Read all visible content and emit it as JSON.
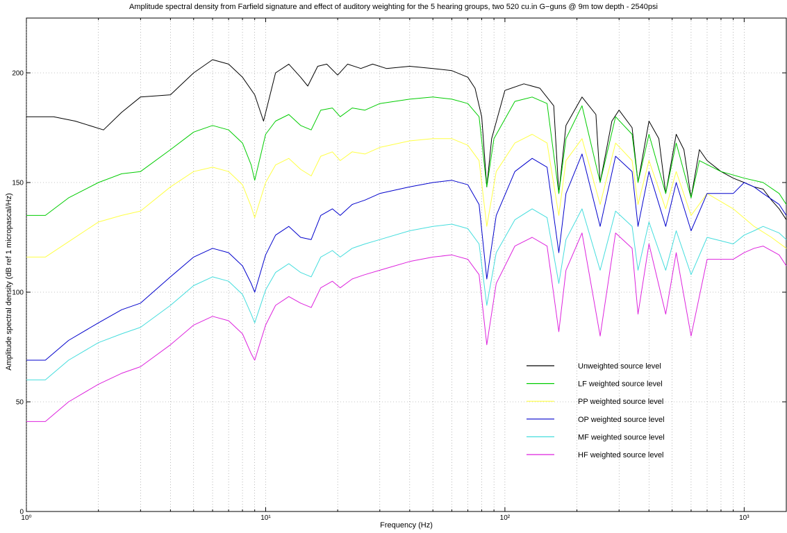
{
  "chart_data": {
    "type": "line",
    "title": "Amplitude spectral density from Farfield signature and effect of auditory weighting for the 5 hearing groups, two 520 cu.in G−guns @ 9m tow depth - 2540psi",
    "xlabel": "Frequency (Hz)",
    "ylabel": "Amplitude spectral density (dB ref 1 micropascal/Hz)",
    "xscale": "log",
    "xlim": [
      1,
      1500
    ],
    "ylim": [
      0,
      225
    ],
    "grid": true,
    "legend_position": "lower-right",
    "x_ticks": [
      {
        "value": 1,
        "label": "10⁰"
      },
      {
        "value": 10,
        "label": "10¹"
      },
      {
        "value": 100,
        "label": "10²"
      },
      {
        "value": 1000,
        "label": "10³"
      }
    ],
    "y_ticks": [
      0,
      50,
      100,
      150,
      200
    ],
    "series": [
      {
        "name": "Unweighted source level",
        "color": "#000000",
        "points": [
          [
            1,
            180
          ],
          [
            1.3,
            180
          ],
          [
            1.6,
            178
          ],
          [
            2.1,
            174
          ],
          [
            2.5,
            182
          ],
          [
            3,
            189
          ],
          [
            4,
            190
          ],
          [
            5,
            200
          ],
          [
            6,
            206
          ],
          [
            7,
            204
          ],
          [
            8,
            198
          ],
          [
            9,
            190
          ],
          [
            9.8,
            178
          ],
          [
            11,
            200
          ],
          [
            12.5,
            204
          ],
          [
            14,
            198
          ],
          [
            15,
            194
          ],
          [
            16.5,
            203
          ],
          [
            18,
            204
          ],
          [
            20,
            199
          ],
          [
            22,
            204
          ],
          [
            25,
            202
          ],
          [
            28,
            204
          ],
          [
            32,
            202
          ],
          [
            40,
            203
          ],
          [
            50,
            202
          ],
          [
            60,
            201
          ],
          [
            70,
            198
          ],
          [
            75,
            193
          ],
          [
            80,
            180
          ],
          [
            84,
            148
          ],
          [
            88,
            170
          ],
          [
            100,
            192
          ],
          [
            120,
            195
          ],
          [
            140,
            193
          ],
          [
            160,
            185
          ],
          [
            168,
            145
          ],
          [
            180,
            176
          ],
          [
            210,
            189
          ],
          [
            240,
            181
          ],
          [
            250,
            150
          ],
          [
            280,
            178
          ],
          [
            300,
            183
          ],
          [
            340,
            175
          ],
          [
            360,
            150
          ],
          [
            400,
            178
          ],
          [
            440,
            170
          ],
          [
            470,
            145
          ],
          [
            520,
            172
          ],
          [
            560,
            165
          ],
          [
            600,
            143
          ],
          [
            650,
            165
          ],
          [
            700,
            160
          ],
          [
            800,
            155
          ],
          [
            900,
            152
          ],
          [
            1000,
            150
          ],
          [
            1100,
            148
          ],
          [
            1200,
            147
          ],
          [
            1300,
            142
          ],
          [
            1400,
            138
          ],
          [
            1500,
            133
          ]
        ]
      },
      {
        "name": "LF weighted source level",
        "color": "#00cc00",
        "points": [
          [
            1,
            135
          ],
          [
            1.2,
            135
          ],
          [
            1.5,
            143
          ],
          [
            2,
            150
          ],
          [
            2.5,
            154
          ],
          [
            3,
            155
          ],
          [
            4,
            165
          ],
          [
            5,
            173
          ],
          [
            6,
            176
          ],
          [
            7,
            174
          ],
          [
            8,
            168
          ],
          [
            8.7,
            158
          ],
          [
            9,
            151
          ],
          [
            10,
            172
          ],
          [
            11,
            178
          ],
          [
            12.5,
            181
          ],
          [
            14,
            176
          ],
          [
            15.5,
            174
          ],
          [
            17,
            183
          ],
          [
            19,
            184
          ],
          [
            20.5,
            180
          ],
          [
            23,
            184
          ],
          [
            26,
            183
          ],
          [
            30,
            186
          ],
          [
            40,
            188
          ],
          [
            50,
            189
          ],
          [
            60,
            188
          ],
          [
            70,
            186
          ],
          [
            78,
            180
          ],
          [
            84,
            148
          ],
          [
            90,
            170
          ],
          [
            110,
            187
          ],
          [
            130,
            189
          ],
          [
            150,
            186
          ],
          [
            168,
            145
          ],
          [
            180,
            170
          ],
          [
            210,
            185
          ],
          [
            250,
            150
          ],
          [
            290,
            180
          ],
          [
            340,
            172
          ],
          [
            360,
            150
          ],
          [
            400,
            172
          ],
          [
            470,
            145
          ],
          [
            520,
            168
          ],
          [
            600,
            143
          ],
          [
            650,
            160
          ],
          [
            800,
            155
          ],
          [
            1000,
            152
          ],
          [
            1200,
            150
          ],
          [
            1400,
            145
          ],
          [
            1500,
            140
          ]
        ]
      },
      {
        "name": "PP weighted source level",
        "color": "#ffff44",
        "points": [
          [
            1,
            116
          ],
          [
            1.2,
            116
          ],
          [
            1.5,
            123
          ],
          [
            2,
            132
          ],
          [
            2.5,
            135
          ],
          [
            3,
            137
          ],
          [
            4,
            148
          ],
          [
            5,
            155
          ],
          [
            6,
            157
          ],
          [
            7,
            155
          ],
          [
            8,
            149
          ],
          [
            8.7,
            139
          ],
          [
            9,
            134
          ],
          [
            10,
            150
          ],
          [
            11,
            158
          ],
          [
            12.5,
            161
          ],
          [
            14,
            156
          ],
          [
            15.5,
            153
          ],
          [
            17,
            162
          ],
          [
            19,
            164
          ],
          [
            20.5,
            160
          ],
          [
            23,
            164
          ],
          [
            26,
            163
          ],
          [
            30,
            166
          ],
          [
            40,
            169
          ],
          [
            50,
            170
          ],
          [
            60,
            170
          ],
          [
            70,
            167
          ],
          [
            78,
            160
          ],
          [
            84,
            130
          ],
          [
            92,
            155
          ],
          [
            110,
            168
          ],
          [
            130,
            172
          ],
          [
            150,
            168
          ],
          [
            168,
            135
          ],
          [
            180,
            160
          ],
          [
            210,
            170
          ],
          [
            250,
            140
          ],
          [
            290,
            168
          ],
          [
            340,
            160
          ],
          [
            360,
            140
          ],
          [
            400,
            160
          ],
          [
            470,
            138
          ],
          [
            520,
            155
          ],
          [
            600,
            135
          ],
          [
            700,
            145
          ],
          [
            900,
            138
          ],
          [
            1100,
            130
          ],
          [
            1300,
            125
          ],
          [
            1500,
            120
          ]
        ]
      },
      {
        "name": "OP weighted source level",
        "color": "#0000cc",
        "points": [
          [
            1,
            69
          ],
          [
            1.2,
            69
          ],
          [
            1.5,
            78
          ],
          [
            2,
            86
          ],
          [
            2.5,
            92
          ],
          [
            3,
            95
          ],
          [
            4,
            107
          ],
          [
            5,
            116
          ],
          [
            6,
            120
          ],
          [
            7,
            118
          ],
          [
            8,
            112
          ],
          [
            8.7,
            104
          ],
          [
            9,
            100
          ],
          [
            10,
            117
          ],
          [
            11,
            126
          ],
          [
            12.5,
            130
          ],
          [
            14,
            125
          ],
          [
            15.5,
            124
          ],
          [
            17,
            135
          ],
          [
            19,
            138
          ],
          [
            20.5,
            135
          ],
          [
            23,
            140
          ],
          [
            26,
            142
          ],
          [
            30,
            145
          ],
          [
            40,
            148
          ],
          [
            50,
            150
          ],
          [
            60,
            151
          ],
          [
            70,
            149
          ],
          [
            78,
            140
          ],
          [
            84,
            106
          ],
          [
            92,
            135
          ],
          [
            110,
            155
          ],
          [
            130,
            161
          ],
          [
            150,
            157
          ],
          [
            168,
            118
          ],
          [
            180,
            145
          ],
          [
            210,
            163
          ],
          [
            250,
            130
          ],
          [
            290,
            162
          ],
          [
            340,
            155
          ],
          [
            360,
            130
          ],
          [
            400,
            155
          ],
          [
            470,
            130
          ],
          [
            520,
            150
          ],
          [
            600,
            128
          ],
          [
            700,
            145
          ],
          [
            900,
            145
          ],
          [
            1000,
            150
          ],
          [
            1100,
            148
          ],
          [
            1200,
            145
          ],
          [
            1400,
            140
          ],
          [
            1500,
            135
          ]
        ]
      },
      {
        "name": "MF weighted source level",
        "color": "#44dddd",
        "points": [
          [
            1,
            60
          ],
          [
            1.2,
            60
          ],
          [
            1.5,
            69
          ],
          [
            2,
            77
          ],
          [
            2.5,
            81
          ],
          [
            3,
            84
          ],
          [
            4,
            94
          ],
          [
            5,
            103
          ],
          [
            6,
            107
          ],
          [
            7,
            105
          ],
          [
            8,
            99
          ],
          [
            8.7,
            90
          ],
          [
            9,
            86
          ],
          [
            10,
            101
          ],
          [
            11,
            109
          ],
          [
            12.5,
            113
          ],
          [
            14,
            109
          ],
          [
            15.5,
            107
          ],
          [
            17,
            116
          ],
          [
            19,
            119
          ],
          [
            20.5,
            116
          ],
          [
            23,
            120
          ],
          [
            26,
            122
          ],
          [
            30,
            124
          ],
          [
            40,
            128
          ],
          [
            50,
            130
          ],
          [
            60,
            131
          ],
          [
            70,
            129
          ],
          [
            78,
            122
          ],
          [
            84,
            94
          ],
          [
            92,
            118
          ],
          [
            110,
            133
          ],
          [
            130,
            138
          ],
          [
            150,
            134
          ],
          [
            168,
            104
          ],
          [
            180,
            124
          ],
          [
            210,
            138
          ],
          [
            250,
            110
          ],
          [
            290,
            137
          ],
          [
            340,
            130
          ],
          [
            360,
            110
          ],
          [
            400,
            132
          ],
          [
            470,
            110
          ],
          [
            520,
            128
          ],
          [
            600,
            108
          ],
          [
            700,
            125
          ],
          [
            900,
            122
          ],
          [
            1000,
            126
          ],
          [
            1100,
            128
          ],
          [
            1200,
            130
          ],
          [
            1400,
            127
          ],
          [
            1500,
            124
          ]
        ]
      },
      {
        "name": "HF weighted source level",
        "color": "#dd22dd",
        "points": [
          [
            1,
            41
          ],
          [
            1.2,
            41
          ],
          [
            1.5,
            50
          ],
          [
            2,
            58
          ],
          [
            2.5,
            63
          ],
          [
            3,
            66
          ],
          [
            4,
            76
          ],
          [
            5,
            85
          ],
          [
            6,
            89
          ],
          [
            7,
            87
          ],
          [
            8,
            81
          ],
          [
            8.7,
            72
          ],
          [
            9,
            69
          ],
          [
            10,
            85
          ],
          [
            11,
            94
          ],
          [
            12.5,
            98
          ],
          [
            14,
            95
          ],
          [
            15.5,
            93
          ],
          [
            17,
            102
          ],
          [
            19,
            105
          ],
          [
            20.5,
            102
          ],
          [
            23,
            106
          ],
          [
            26,
            108
          ],
          [
            30,
            110
          ],
          [
            40,
            114
          ],
          [
            50,
            116
          ],
          [
            60,
            117
          ],
          [
            70,
            115
          ],
          [
            78,
            108
          ],
          [
            84,
            76
          ],
          [
            92,
            104
          ],
          [
            110,
            121
          ],
          [
            130,
            125
          ],
          [
            150,
            121
          ],
          [
            168,
            82
          ],
          [
            180,
            110
          ],
          [
            210,
            127
          ],
          [
            250,
            80
          ],
          [
            290,
            127
          ],
          [
            340,
            120
          ],
          [
            360,
            90
          ],
          [
            400,
            122
          ],
          [
            470,
            90
          ],
          [
            520,
            118
          ],
          [
            600,
            80
          ],
          [
            700,
            115
          ],
          [
            900,
            115
          ],
          [
            1000,
            118
          ],
          [
            1100,
            120
          ],
          [
            1200,
            121
          ],
          [
            1400,
            117
          ],
          [
            1500,
            112
          ]
        ]
      }
    ]
  }
}
